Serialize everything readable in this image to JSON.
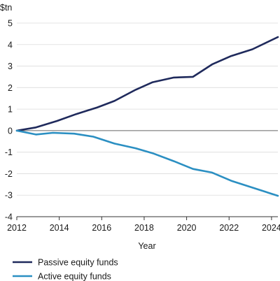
{
  "chart_data": {
    "type": "line",
    "unit_label": "$tn",
    "xlabel": "Year",
    "ylabel": "",
    "xlim": [
      2012,
      2024.3
    ],
    "ylim": [
      -4,
      5
    ],
    "x_ticks": [
      2012,
      2014,
      2016,
      2018,
      2020,
      2022,
      2024
    ],
    "y_ticks": [
      5,
      4,
      3,
      2,
      1,
      0,
      -1,
      -2,
      -3,
      -4
    ],
    "grid": "horizontal",
    "legend_position": "bottom-left",
    "series": [
      {
        "name": "Passive equity funds",
        "color": "#1f2a5c",
        "points": [
          [
            2012,
            0
          ],
          [
            2012.9,
            0.15
          ],
          [
            2013.9,
            0.45
          ],
          [
            2014.8,
            0.77
          ],
          [
            2015.8,
            1.08
          ],
          [
            2016.6,
            1.38
          ],
          [
            2017.6,
            1.9
          ],
          [
            2018.4,
            2.25
          ],
          [
            2019.4,
            2.47
          ],
          [
            2020.3,
            2.5
          ],
          [
            2021.2,
            3.08
          ],
          [
            2022.1,
            3.47
          ],
          [
            2023.1,
            3.78
          ],
          [
            2024.3,
            4.35
          ]
        ]
      },
      {
        "name": "Active equity funds",
        "color": "#2b8fc2",
        "points": [
          [
            2012,
            0
          ],
          [
            2012.9,
            -0.18
          ],
          [
            2013.7,
            -0.1
          ],
          [
            2014.7,
            -0.14
          ],
          [
            2015.6,
            -0.28
          ],
          [
            2016.6,
            -0.6
          ],
          [
            2017.6,
            -0.82
          ],
          [
            2018.4,
            -1.05
          ],
          [
            2019.4,
            -1.42
          ],
          [
            2020.3,
            -1.78
          ],
          [
            2021.2,
            -1.95
          ],
          [
            2022.1,
            -2.33
          ],
          [
            2023.1,
            -2.65
          ],
          [
            2024.3,
            -3.03
          ]
        ]
      }
    ]
  }
}
